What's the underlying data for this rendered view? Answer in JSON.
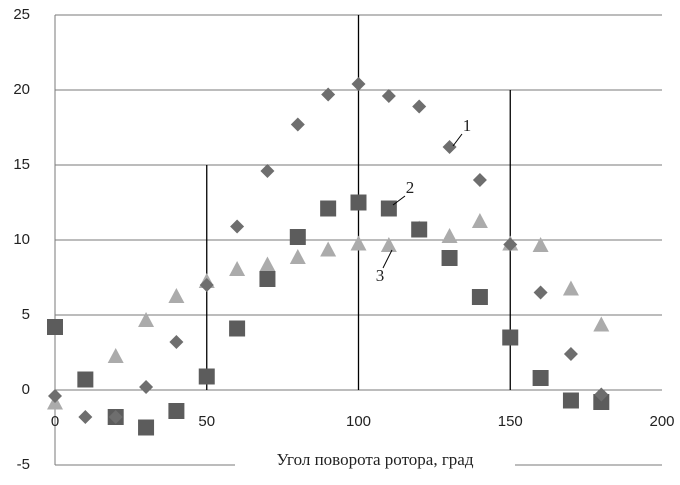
{
  "chart_data": {
    "type": "scatter",
    "x_label": "Угол поворота ротора, град",
    "x": [
      0,
      10,
      20,
      30,
      40,
      50,
      60,
      70,
      80,
      90,
      100,
      110,
      120,
      130,
      140,
      150,
      160,
      170,
      180
    ],
    "series": [
      {
        "name": "1",
        "marker": "diamond",
        "color": "#6e6e6e",
        "values": [
          -0.4,
          -1.8,
          -1.8,
          0.2,
          3.2,
          7.0,
          10.9,
          14.6,
          17.7,
          19.7,
          20.4,
          19.6,
          18.9,
          16.2,
          14.0,
          9.7,
          6.5,
          2.4,
          -0.3
        ]
      },
      {
        "name": "2",
        "marker": "square",
        "color": "#5c5c5c",
        "values": [
          4.2,
          0.7,
          -1.8,
          -2.5,
          -1.4,
          0.9,
          4.1,
          7.4,
          10.2,
          12.1,
          12.5,
          12.1,
          10.7,
          8.8,
          6.2,
          3.5,
          0.8,
          -0.7,
          -0.8
        ]
      },
      {
        "name": "3",
        "marker": "triangle",
        "color": "#ababab",
        "values": [
          -0.9,
          0.6,
          2.2,
          4.6,
          6.2,
          7.2,
          8.0,
          8.3,
          8.8,
          9.3,
          9.7,
          9.6,
          10.7,
          10.2,
          11.2,
          9.7,
          9.6,
          6.7,
          4.3
        ]
      }
    ],
    "vlines": [
      {
        "x": 50,
        "y": [
          0,
          15
        ]
      },
      {
        "x": 100,
        "y": [
          0,
          25
        ]
      },
      {
        "x": 150,
        "y": [
          0,
          20
        ]
      }
    ],
    "xlim": [
      0,
      200
    ],
    "xticks": [
      0,
      50,
      100,
      150,
      200
    ],
    "ylim": [
      -5,
      25
    ],
    "yticks": [
      -5,
      0,
      5,
      10,
      15,
      20,
      25
    ],
    "grid": true
  }
}
